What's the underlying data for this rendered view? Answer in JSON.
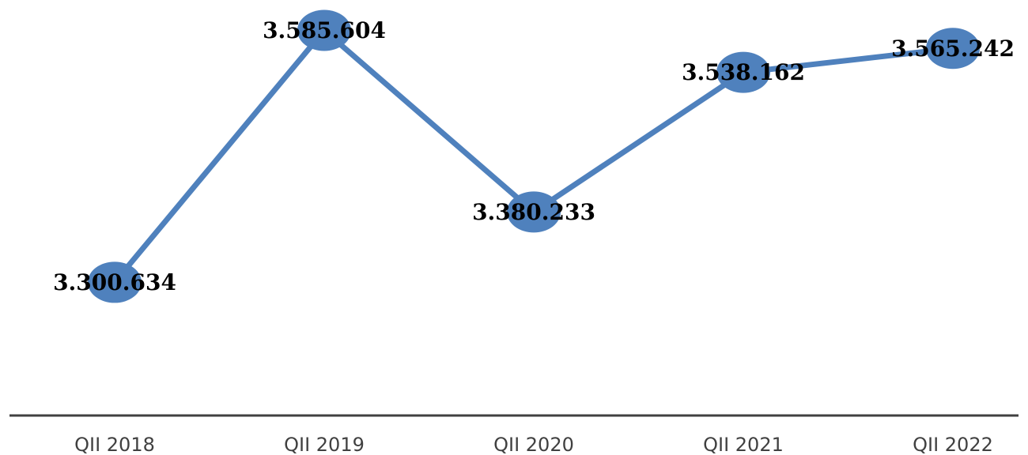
{
  "chart_data": {
    "type": "line",
    "categories": [
      "QII 2018",
      "QII 2019",
      "QII 2020",
      "QII 2021",
      "QII 2022"
    ],
    "values": [
      3300634,
      3585604,
      3380233,
      3538162,
      3565242
    ],
    "value_labels": [
      "3.300.634",
      "3.585.604",
      "3.380.233",
      "3.538.162",
      "3.565.242"
    ],
    "color": "#4f81bd",
    "ylim": [
      3150000,
      3620000
    ]
  }
}
